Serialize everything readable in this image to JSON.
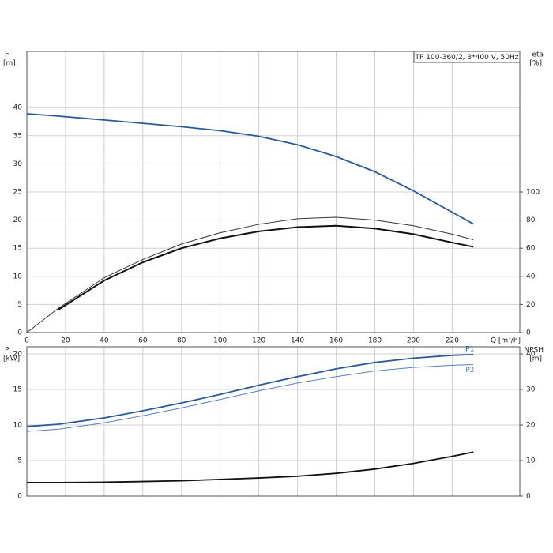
{
  "chart_data": [
    {
      "type": "line",
      "annotation": "TP 100-360/2, 3*400 V, 50Hz",
      "ylabel": "H",
      "yunit": "[m]",
      "y2label": "eta",
      "y2unit": "[%]",
      "xlabel": "Q [m³/h]",
      "xlim": [
        0,
        255
      ],
      "xticks": [
        0,
        20,
        40,
        60,
        80,
        100,
        120,
        140,
        160,
        180,
        200,
        220
      ],
      "ylim": [
        0,
        50
      ],
      "yticks": [
        0,
        5,
        10,
        15,
        20,
        25,
        30,
        35,
        40
      ],
      "y2lim": [
        0,
        200
      ],
      "y2ticks": [
        0,
        20,
        40,
        60,
        80,
        100
      ],
      "grid": true,
      "x": [
        0,
        16,
        40,
        60,
        80,
        100,
        120,
        140,
        160,
        180,
        200,
        220,
        231
      ],
      "series": [
        {
          "color": "#2a5a97",
          "width": 1.8,
          "values": [
            38.9,
            38.5,
            37.8,
            37.2,
            36.6,
            35.9,
            34.9,
            33.4,
            31.3,
            28.6,
            25.2,
            21.4,
            19.3
          ]
        },
        {
          "color": "#333333",
          "width": 1,
          "axis": "y2",
          "values": [
            0,
            17,
            39,
            52,
            63,
            71,
            77,
            81,
            82,
            80,
            76,
            70,
            66
          ]
        },
        {
          "color": "#111111",
          "width": 2,
          "axis": "y2",
          "values": [
            null,
            16,
            37,
            50,
            60,
            67,
            72,
            75,
            76,
            74,
            70,
            64,
            61
          ]
        }
      ]
    },
    {
      "type": "line",
      "ylabel": "P",
      "yunit": "[kW]",
      "y2label": "NPSH",
      "y2unit": "[m]",
      "xlim": [
        0,
        255
      ],
      "ylim": [
        0,
        21
      ],
      "yticks": [
        0,
        5,
        10,
        15,
        20
      ],
      "y2lim": [
        0,
        42
      ],
      "y2ticks": [
        0,
        10,
        20,
        30,
        40
      ],
      "grid": true,
      "x": [
        0,
        16,
        40,
        60,
        80,
        100,
        120,
        140,
        160,
        180,
        200,
        220,
        231
      ],
      "series": [
        {
          "name": "P1",
          "color": "#2a5a97",
          "width": 1.8,
          "values": [
            9.8,
            10.1,
            11.0,
            12.0,
            13.1,
            14.3,
            15.6,
            16.8,
            17.9,
            18.8,
            19.4,
            19.8,
            19.9
          ]
        },
        {
          "name": "P2",
          "color": "#5b80b5",
          "width": 1,
          "values": [
            9.1,
            9.4,
            10.3,
            11.3,
            12.4,
            13.6,
            14.8,
            15.9,
            16.8,
            17.6,
            18.1,
            18.4,
            18.5
          ]
        },
        {
          "color": "#111111",
          "width": 1.8,
          "axis": "y2",
          "values": [
            3.8,
            3.8,
            3.9,
            4.1,
            4.3,
            4.7,
            5.1,
            5.6,
            6.4,
            7.6,
            9.2,
            11.2,
            12.4
          ]
        }
      ]
    }
  ]
}
